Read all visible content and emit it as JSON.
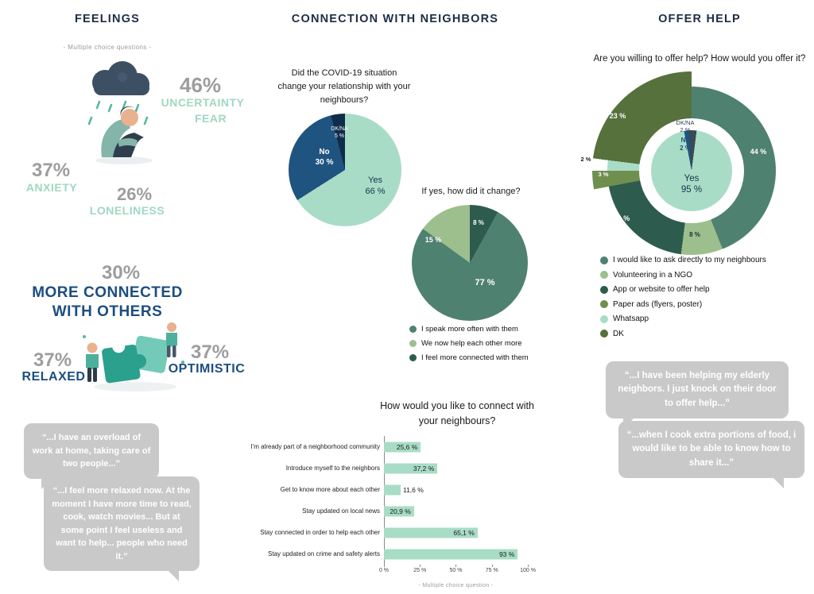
{
  "palette": {
    "mint": "#9fd8c0",
    "navy": "#1c4e80",
    "stat_gray": "#9d9d9d",
    "bubble_gray": "#c9c9c9",
    "header_navy": "#1d2d44"
  },
  "feelings": {
    "title": "FEELINGS",
    "subtitle": "- Multiple choice questions -",
    "uncertainty_pct": "46%",
    "uncertainty_label1": "UNCERTAINTY",
    "uncertainty_label2": "FEAR",
    "anxiety_pct": "37%",
    "anxiety_label": "ANXIETY",
    "loneliness_pct": "26%",
    "loneliness_label": "LONELINESS",
    "connected_pct": "30%",
    "connected_label1": "MORE CONNECTED",
    "connected_label2": "WITH OTHERS",
    "relaxed_pct": "37%",
    "relaxed_label": "RELAXED",
    "optimistic_pct": "37%",
    "optimistic_label": "OPTIMISTIC",
    "quote1": "“...I have an overload of work at home, taking care of two people...”",
    "quote2": "“...I feel more relaxed now. At the moment I have more time to read, cook, watch movies... But at some point I feel useless and want to help... people who need it.”"
  },
  "connection": {
    "title": "CONNECTION WITH NEIGHBORS",
    "footnote": "- Multiple choice question -"
  },
  "offer": {
    "title": "OFFER HELP",
    "quote1": "“...I have been helping my elderly neighbors. I just knock on their door to offer help...”",
    "quote2": "“...when I cook extra portions of food, i would like to be able to know how to share it...”"
  },
  "chart_data": [
    {
      "type": "pie",
      "title": "Did the COVID-19 situation change your relationship with your neighbours?",
      "slices": [
        {
          "label": "Yes",
          "value": 66,
          "display": "66 %",
          "color": "#a9dcc6"
        },
        {
          "label": "No",
          "value": 30,
          "display": "30 %",
          "color": "#1f5380"
        },
        {
          "label": "DK/NA",
          "value": 5,
          "display": "5 %",
          "color": "#0f2d4a"
        }
      ]
    },
    {
      "type": "pie",
      "title": "If yes, how did it change?",
      "slices": [
        {
          "label": "I speak more often with them",
          "value": 77,
          "display": "77 %",
          "color": "#4f8171"
        },
        {
          "label": "We now help each other more",
          "value": 15,
          "display": "15 %",
          "color": "#9dbf8e"
        },
        {
          "label": "I feel more connected with them",
          "value": 8,
          "display": "8 %",
          "color": "#2d5c4e"
        }
      ]
    },
    {
      "type": "bar",
      "title": "How would you like to connect with your neighbours?",
      "categories": [
        "I'm already part of a neighborhood community",
        "Introduce myself to the neighbors",
        "Get to know more about each other",
        "Stay updated on local news",
        "Stay connected in order to help each other",
        "Stay updated on crime and safety alerts"
      ],
      "values": [
        25.6,
        37.2,
        11.6,
        20.9,
        65.1,
        93
      ],
      "value_labels": [
        "25,6 %",
        "37,2 %",
        "11,6 %",
        "20,9 %",
        "65,1 %",
        "93 %"
      ],
      "xticks": [
        "0 %",
        "25 %",
        "50 %",
        "75 %",
        "100 %"
      ],
      "xlim": [
        0,
        100
      ],
      "bar_color": "#a9dcc6",
      "footnote": "- Multiple choice question -"
    },
    {
      "type": "donut",
      "title": "Are you willing to offer help? How would you offer it?",
      "inner": [
        {
          "label": "Yes",
          "value": 95,
          "display": "95 %",
          "color": "#a9dcc6"
        },
        {
          "label": "No",
          "value": 2,
          "display": "2 %",
          "color": "#1f5380"
        },
        {
          "label": "DK/NA",
          "value": 2,
          "display": "2 %",
          "color": "#3a4a52"
        }
      ],
      "outer": [
        {
          "label": "I would like to ask directly to my neighbours",
          "value": 44,
          "display": "44 %",
          "color": "#4f8171"
        },
        {
          "label": "Volunteering in a NGO",
          "value": 8,
          "display": "8 %",
          "color": "#9dbf8e"
        },
        {
          "label": "App or website to offer help",
          "value": 20,
          "display": "20 %",
          "color": "#2d5c4e"
        },
        {
          "label": "Paper ads (flyers, poster)",
          "value": 3,
          "display": "3 %",
          "color": "#6f8f4f"
        },
        {
          "label": "Whatsapp",
          "value": 2,
          "display": "2 %",
          "color": "#a9dcc6"
        },
        {
          "label": "DK",
          "value": 23,
          "display": "23 %",
          "color": "#56713c"
        }
      ]
    }
  ]
}
